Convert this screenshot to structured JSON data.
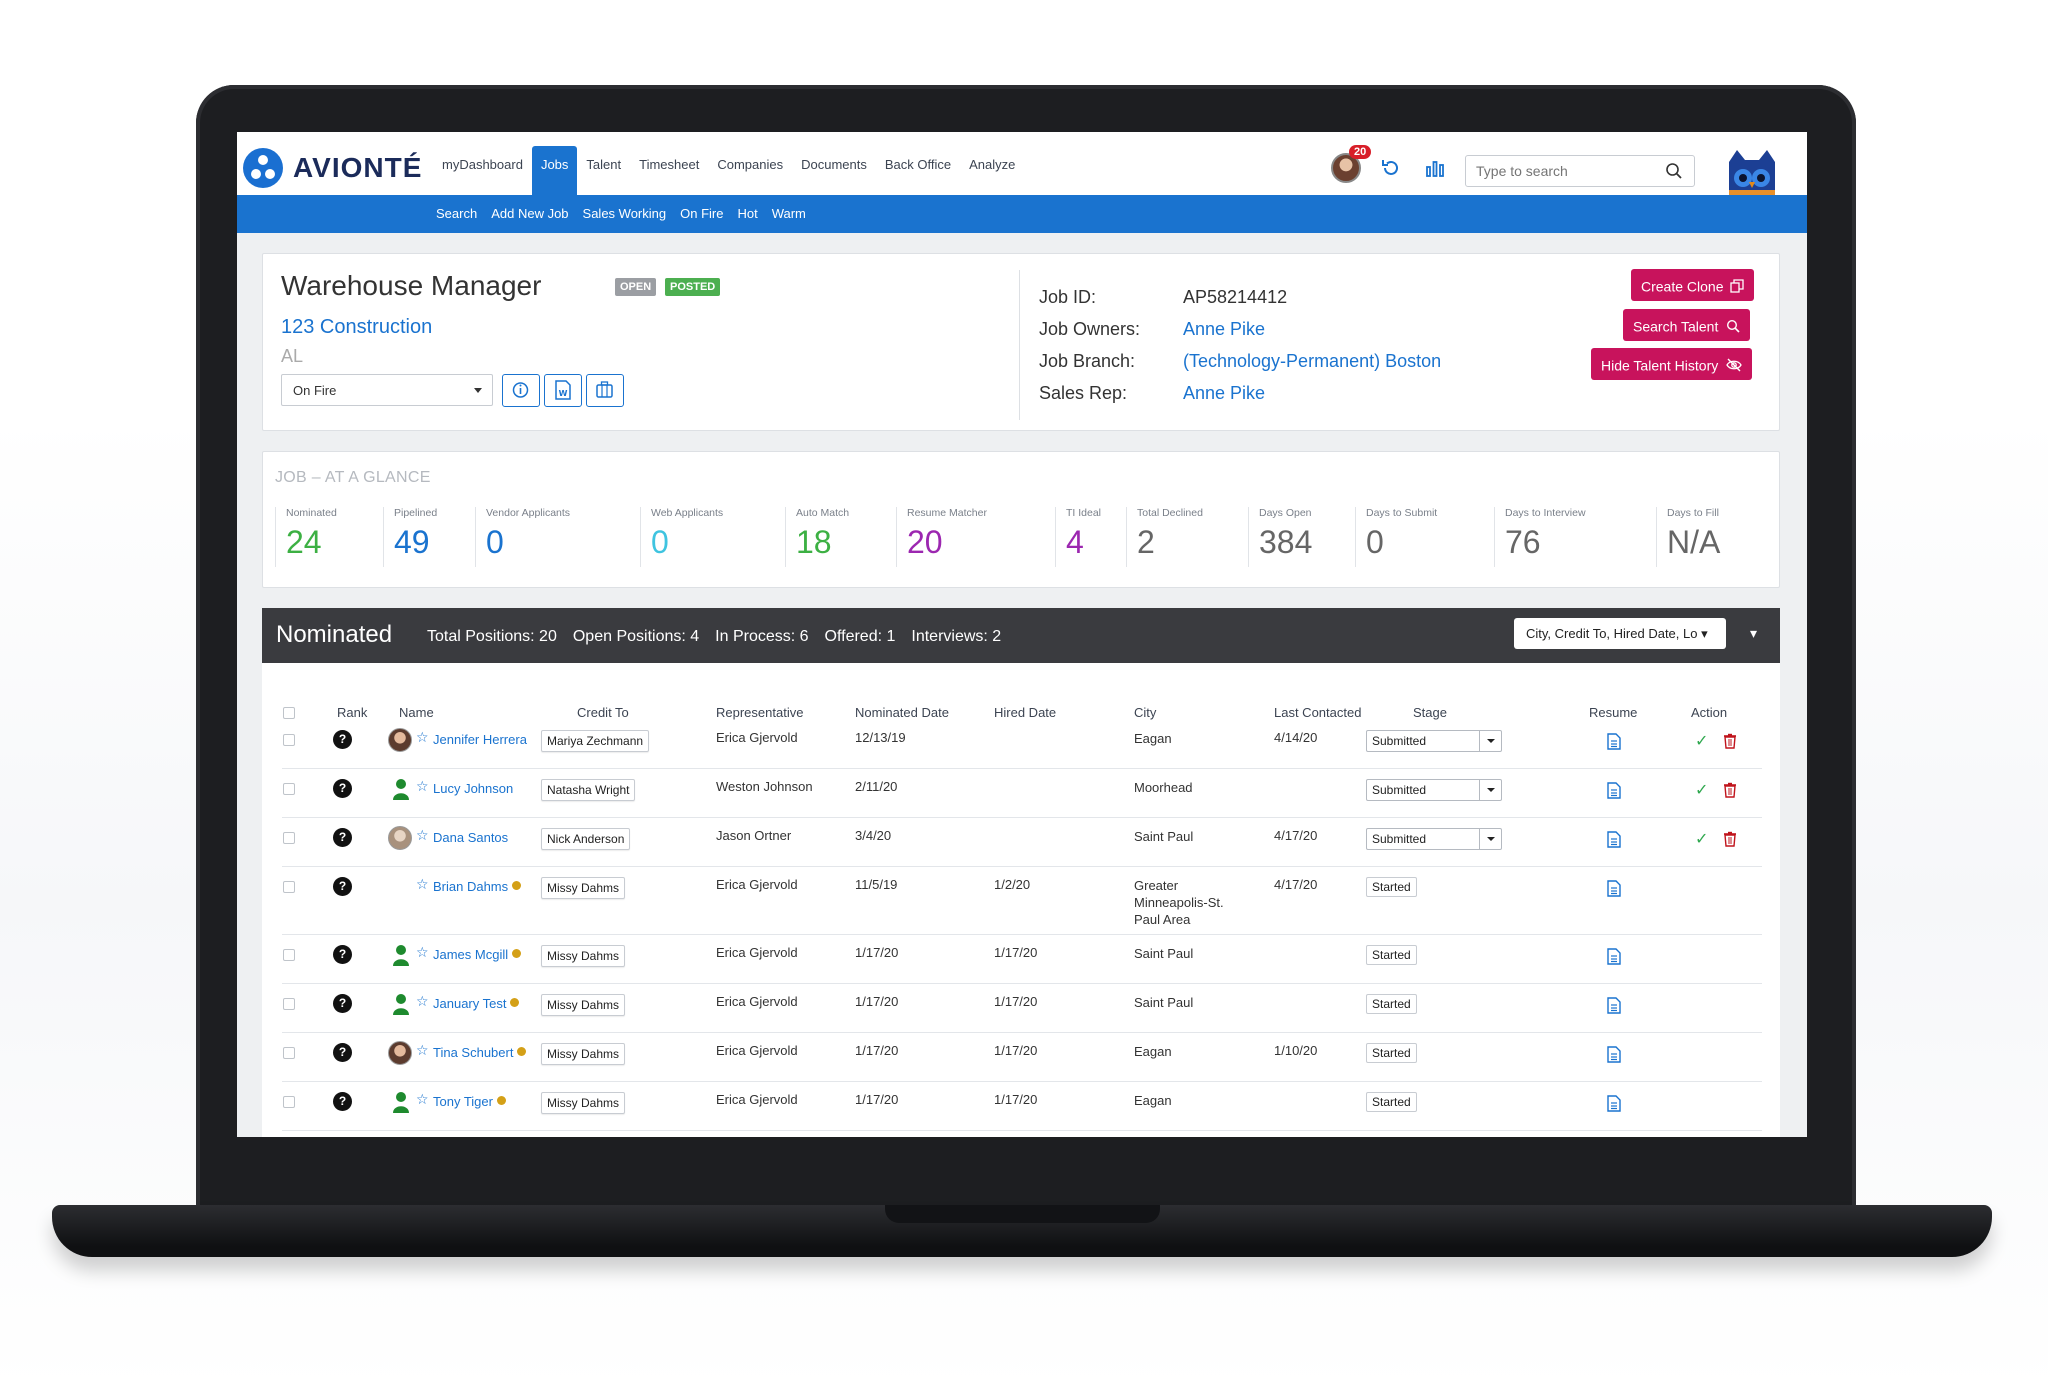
{
  "app": {
    "brand": "AVIONTÉ",
    "nav": [
      "myDashboard",
      "Jobs",
      "Talent",
      "Timesheet",
      "Companies",
      "Documents",
      "Back Office",
      "Analyze"
    ],
    "active_nav": "Jobs",
    "notification_count": "20",
    "search_placeholder": "Type to search",
    "subnav": [
      "Search",
      "Add New Job",
      "Sales Working",
      "On Fire",
      "Hot",
      "Warm"
    ]
  },
  "job": {
    "title": "Warehouse Manager",
    "badges": [
      "OPEN",
      "POSTED"
    ],
    "company": "123 Construction",
    "state": "AL",
    "status": "On Fire",
    "id_label": "Job ID:",
    "id": "AP58214412",
    "owners_label": "Job Owners:",
    "owners": "Anne Pike",
    "branch_label": "Job Branch:",
    "branch": "(Technology-Permanent) Boston",
    "sales_rep_label": "Sales Rep:",
    "sales_rep": "Anne Pike",
    "actions": [
      "Create Clone",
      "Search Talent",
      "Hide Talent History"
    ]
  },
  "glance": {
    "title": "JOB – AT A GLANCE",
    "stats": [
      {
        "label": "Nominated",
        "value": "24",
        "color": "#3cb043"
      },
      {
        "label": "Pipelined",
        "value": "49",
        "color": "#1a73cf"
      },
      {
        "label": "Vendor Applicants",
        "value": "0",
        "color": "#1a73cf"
      },
      {
        "label": "Web Applicants",
        "value": "0",
        "color": "#3fc4e0"
      },
      {
        "label": "Auto Match",
        "value": "18",
        "color": "#3cb043"
      },
      {
        "label": "Resume Matcher",
        "value": "20",
        "color": "#9c27b0"
      },
      {
        "label": "TI Ideal",
        "value": "4",
        "color": "#9c27b0"
      },
      {
        "label": "Total Declined",
        "value": "2",
        "color": "#666666"
      },
      {
        "label": "Days Open",
        "value": "384",
        "color": "#666666"
      },
      {
        "label": "Days to Submit",
        "value": "0",
        "color": "#666666"
      },
      {
        "label": "Days to Interview",
        "value": "76",
        "color": "#666666"
      },
      {
        "label": "Days to Fill",
        "value": "N/A",
        "color": "#666666"
      }
    ]
  },
  "nominated": {
    "title": "Nominated",
    "summary": [
      "Total Positions: 20",
      "Open Positions: 4",
      "In Process: 6",
      "Offered: 1",
      "Interviews: 2"
    ],
    "columns_button": "City, Credit To, Hired Date, Lo",
    "headers": [
      "Rank",
      "Name",
      "Credit To",
      "Representative",
      "Nominated Date",
      "Hired Date",
      "City",
      "Last Contacted",
      "Stage",
      "Resume",
      "Action"
    ],
    "rows": [
      {
        "rank": "?",
        "name": "Jennifer Herrera",
        "avatar": "photo",
        "dot": false,
        "credit_to": "Mariya Zechmann",
        "rep": "Erica Gjervold",
        "nominated": "12/13/19",
        "hired": "",
        "city": "Eagan",
        "last_contacted": "4/14/20",
        "stage": "Submitted",
        "stage_select": true,
        "actions": true
      },
      {
        "rank": "?",
        "name": "Lucy Johnson",
        "avatar": "person",
        "dot": false,
        "credit_to": "Natasha Wright",
        "rep": "Weston Johnson",
        "nominated": "2/11/20",
        "hired": "",
        "city": "Moorhead",
        "last_contacted": "",
        "stage": "Submitted",
        "stage_select": true,
        "actions": true
      },
      {
        "rank": "?",
        "name": "Dana Santos",
        "avatar": "photo-grey",
        "dot": false,
        "credit_to": "Nick Anderson",
        "rep": "Jason Ortner",
        "nominated": "3/4/20",
        "hired": "",
        "city": "Saint Paul",
        "last_contacted": "4/17/20",
        "stage": "Submitted",
        "stage_select": true,
        "actions": true
      },
      {
        "rank": "?",
        "name": "Brian Dahms",
        "avatar": "none",
        "dot": true,
        "credit_to": "Missy Dahms",
        "rep": "Erica Gjervold",
        "nominated": "11/5/19",
        "hired": "1/2/20",
        "city": "Greater Minneapolis-St. Paul Area",
        "last_contacted": "4/17/20",
        "stage": "Started",
        "stage_select": false,
        "actions": false
      },
      {
        "rank": "?",
        "name": "James Mcgill",
        "avatar": "person",
        "dot": true,
        "credit_to": "Missy Dahms",
        "rep": "Erica Gjervold",
        "nominated": "1/17/20",
        "hired": "1/17/20",
        "city": "Saint Paul",
        "last_contacted": "",
        "stage": "Started",
        "stage_select": false,
        "actions": false
      },
      {
        "rank": "?",
        "name": "January Test",
        "avatar": "person",
        "dot": true,
        "credit_to": "Missy Dahms",
        "rep": "Erica Gjervold",
        "nominated": "1/17/20",
        "hired": "1/17/20",
        "city": "Saint Paul",
        "last_contacted": "",
        "stage": "Started",
        "stage_select": false,
        "actions": false
      },
      {
        "rank": "?",
        "name": "Tina Schubert",
        "avatar": "photo",
        "dot": true,
        "credit_to": "Missy Dahms",
        "rep": "Erica Gjervold",
        "nominated": "1/17/20",
        "hired": "1/17/20",
        "city": "Eagan",
        "last_contacted": "1/10/20",
        "stage": "Started",
        "stage_select": false,
        "actions": false
      },
      {
        "rank": "?",
        "name": "Tony Tiger",
        "avatar": "person",
        "dot": true,
        "credit_to": "Missy Dahms",
        "rep": "Erica Gjervold",
        "nominated": "1/17/20",
        "hired": "1/17/20",
        "city": "Eagan",
        "last_contacted": "",
        "stage": "Started",
        "stage_select": false,
        "actions": false
      }
    ]
  },
  "colors": {
    "brand_blue": "#1a73cf",
    "action_magenta": "#c8135c",
    "open_badge": "#9b9ea3",
    "posted_badge": "#4caf50",
    "section_header": "#3a3b3f"
  }
}
